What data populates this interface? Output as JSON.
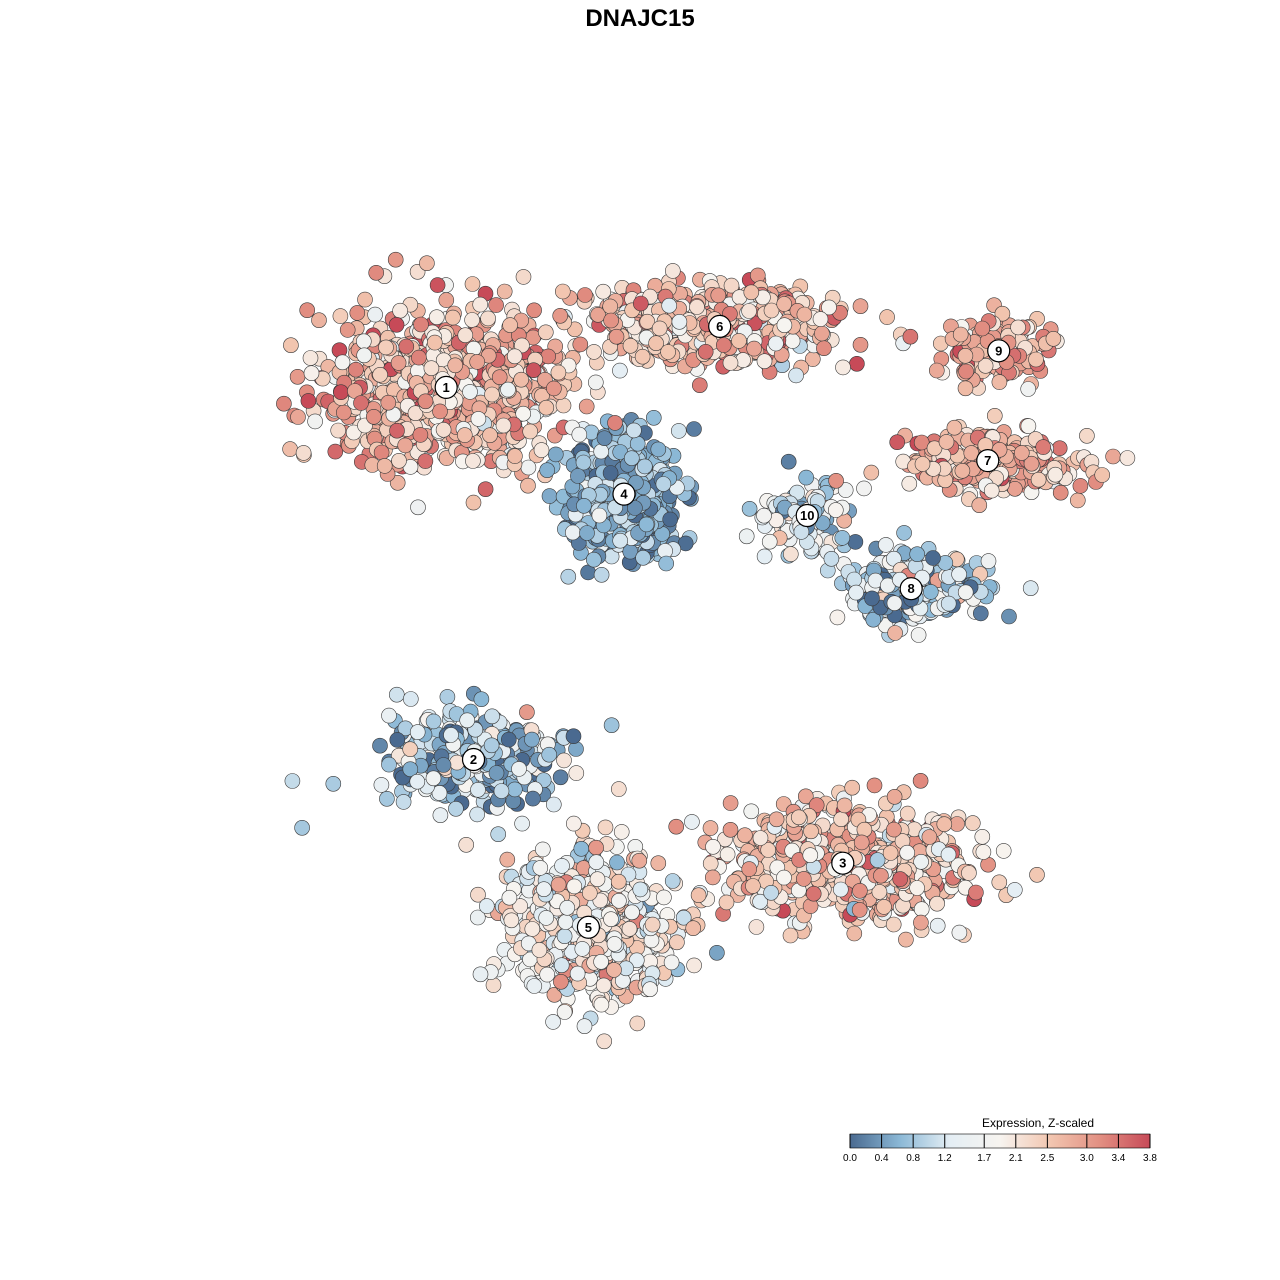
{
  "chart_data": {
    "type": "scatter",
    "title": "DNAJC15",
    "xlabel": "",
    "ylabel": "",
    "grid": false,
    "legend_placement": "bottom-right",
    "colorbar": {
      "title": "Expression, Z-scaled",
      "ticks": [
        "0.0",
        "0.4",
        "0.8",
        "1.2",
        "1.7",
        "2.1",
        "2.5",
        "3.0",
        "3.4",
        "3.8"
      ],
      "tick_values": [
        0.0,
        0.4,
        0.8,
        1.2,
        1.7,
        2.1,
        2.5,
        3.0,
        3.4,
        3.8
      ],
      "range": [
        0.0,
        3.8
      ],
      "colors": [
        "#4a6a90",
        "#8bb8d6",
        "#e4eef4",
        "#f7f4f0",
        "#f2c6b0",
        "#e28f82",
        "#c74a58"
      ]
    },
    "clusters": [
      {
        "label": "1",
        "x": -8.0,
        "y": 8.2,
        "spread": [
          4.2,
          2.6
        ],
        "mean_expr": 2.6,
        "sd_expr": 0.6
      },
      {
        "label": "2",
        "x": -7.0,
        "y": -4.0,
        "spread": [
          3.2,
          1.6
        ],
        "mean_expr": 0.9,
        "sd_expr": 0.7
      },
      {
        "label": "3",
        "x": 6.5,
        "y": -7.4,
        "spread": [
          4.5,
          1.8
        ],
        "mean_expr": 2.4,
        "sd_expr": 0.6
      },
      {
        "label": "4",
        "x": -1.5,
        "y": 4.7,
        "spread": [
          2.0,
          1.9
        ],
        "mean_expr": 0.6,
        "sd_expr": 0.4
      },
      {
        "label": "5",
        "x": -2.8,
        "y": -9.5,
        "spread": [
          3.0,
          2.2
        ],
        "mean_expr": 1.9,
        "sd_expr": 0.6
      },
      {
        "label": "6",
        "x": 2.0,
        "y": 10.2,
        "spread": [
          4.5,
          1.3
        ],
        "mean_expr": 2.5,
        "sd_expr": 0.6
      },
      {
        "label": "7",
        "x": 11.8,
        "y": 5.8,
        "spread": [
          3.2,
          1.0
        ],
        "mean_expr": 2.6,
        "sd_expr": 0.5
      },
      {
        "label": "8",
        "x": 9.0,
        "y": 1.6,
        "spread": [
          2.4,
          1.2
        ],
        "mean_expr": 1.0,
        "sd_expr": 0.7
      },
      {
        "label": "9",
        "x": 12.2,
        "y": 9.4,
        "spread": [
          1.8,
          1.0
        ],
        "mean_expr": 2.8,
        "sd_expr": 0.5
      },
      {
        "label": "10",
        "x": 5.2,
        "y": 4.0,
        "spread": [
          1.6,
          1.3
        ],
        "mean_expr": 1.3,
        "sd_expr": 0.7
      }
    ],
    "xlim": [
      -17,
      17
    ],
    "ylim": [
      -15,
      15
    ]
  }
}
